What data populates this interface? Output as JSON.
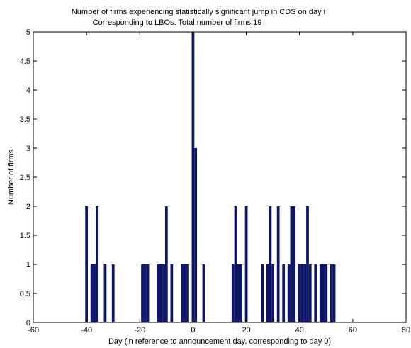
{
  "chart_data": {
    "type": "bar",
    "title": "Number of firms experiencing statistically significant jump in CDS on day i",
    "subtitle": "Corresponding to LBOs.  Total number of firms:19",
    "xlabel": "Day (in reference to announcement day, corresponding to day 0)",
    "ylabel": "Number of firms",
    "xlim": [
      -60,
      80
    ],
    "ylim": [
      0,
      5
    ],
    "xticks": [
      -60,
      -40,
      -20,
      0,
      20,
      40,
      60,
      80
    ],
    "xtick_labels": [
      "-60",
      "-40",
      "-20",
      "0",
      "20",
      "40",
      "60",
      "80"
    ],
    "yticks": [
      0,
      0.5,
      1,
      1.5,
      2,
      2.5,
      3,
      3.5,
      4,
      4.5,
      5
    ],
    "ytick_labels": [
      "0",
      "0.5",
      "1",
      "1.5",
      "2",
      "2.5",
      "3",
      "3.5",
      "4",
      "4.5",
      "5"
    ],
    "grid": false,
    "bar_color": "#0d1566",
    "x": [
      -40,
      -38,
      -37,
      -36,
      -33,
      -30,
      -19,
      -18,
      -17,
      -13,
      -12,
      -11,
      -10,
      -8,
      -4,
      -3,
      -2,
      0,
      1,
      4,
      15,
      16,
      17,
      18,
      20,
      26,
      28,
      29,
      30,
      32,
      34,
      36,
      37,
      38,
      40,
      41,
      42,
      43,
      44,
      46,
      48,
      49,
      50,
      52,
      53
    ],
    "values": [
      2,
      1,
      1,
      2,
      1,
      1,
      1,
      1,
      1,
      1,
      1,
      1,
      2,
      1,
      1,
      1,
      1,
      5,
      3,
      1,
      1,
      2,
      1,
      1,
      2,
      1,
      1,
      2,
      1,
      2,
      1,
      1,
      2,
      2,
      1,
      1,
      1,
      2,
      1,
      1,
      1,
      1,
      1,
      1,
      1
    ]
  }
}
